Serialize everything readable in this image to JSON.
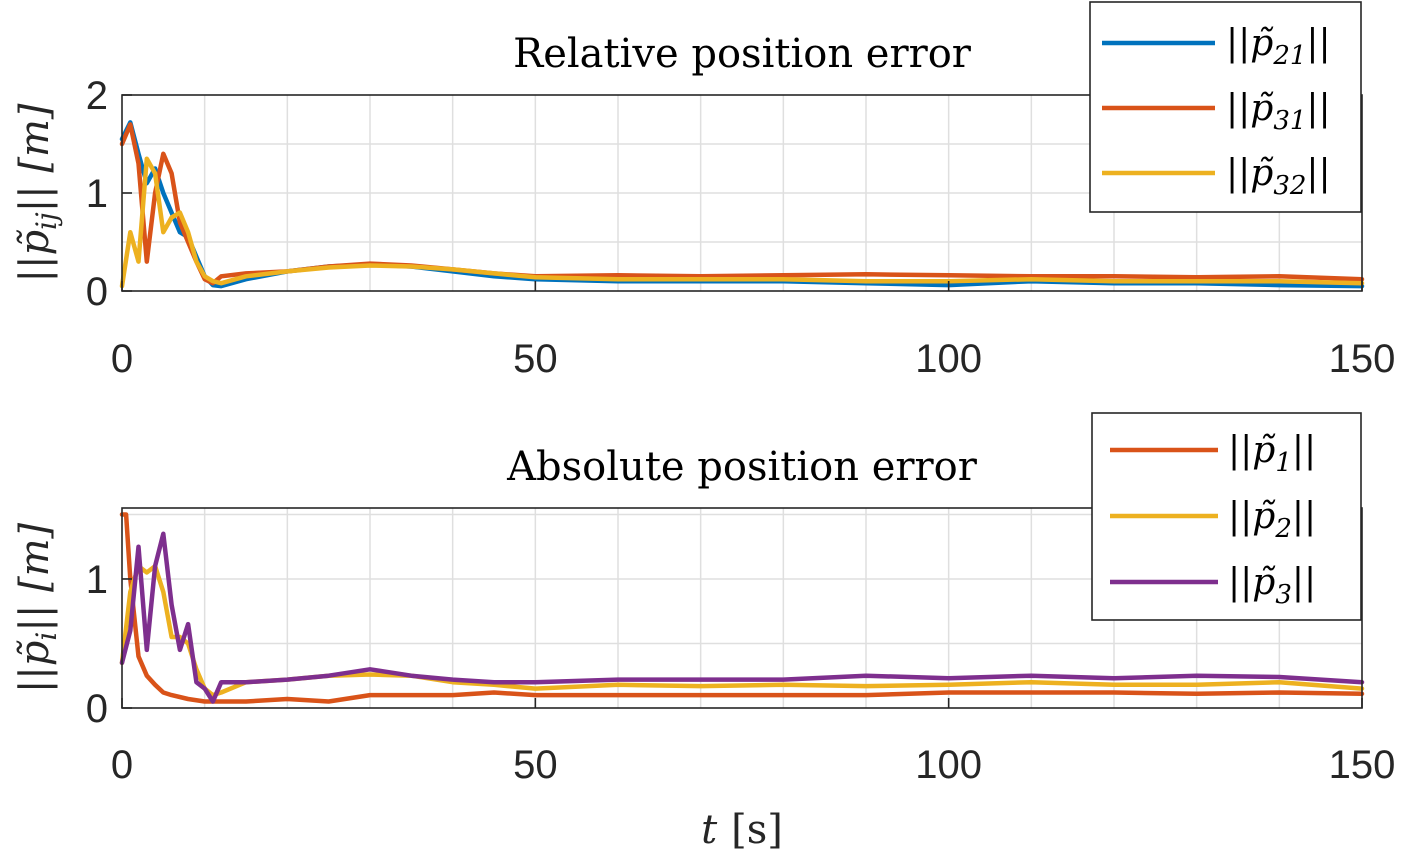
{
  "chart_data": [
    {
      "type": "line",
      "title": "Relative position error",
      "ylabel": "||p̃ij|| [m]",
      "xlabel": "",
      "xlim": [
        0,
        150
      ],
      "ylim": [
        0,
        2
      ],
      "xticks": [
        0,
        50,
        100,
        150
      ],
      "yticks": [
        0,
        1,
        2
      ],
      "grid": true,
      "legend_placement": "top-right",
      "series": [
        {
          "name": "||p̃21||",
          "color": "#0072BD",
          "x": [
            0,
            1,
            2,
            3,
            4,
            5,
            6,
            7,
            8,
            9,
            10,
            11,
            12,
            15,
            20,
            25,
            30,
            35,
            40,
            45,
            50,
            60,
            70,
            80,
            90,
            100,
            110,
            120,
            130,
            140,
            150
          ],
          "y": [
            1.55,
            1.72,
            1.4,
            1.1,
            1.25,
            1.0,
            0.8,
            0.6,
            0.55,
            0.35,
            0.15,
            0.06,
            0.05,
            0.12,
            0.2,
            0.25,
            0.27,
            0.25,
            0.2,
            0.15,
            0.12,
            0.1,
            0.1,
            0.1,
            0.08,
            0.06,
            0.1,
            0.08,
            0.08,
            0.06,
            0.05
          ]
        },
        {
          "name": "||p̃31||",
          "color": "#D95319",
          "x": [
            0,
            1,
            2,
            3,
            4,
            5,
            6,
            7,
            8,
            9,
            10,
            11,
            12,
            15,
            20,
            25,
            30,
            35,
            40,
            45,
            50,
            60,
            70,
            80,
            90,
            100,
            110,
            120,
            130,
            140,
            150
          ],
          "y": [
            1.5,
            1.7,
            1.3,
            0.3,
            1.0,
            1.4,
            1.2,
            0.7,
            0.5,
            0.3,
            0.12,
            0.08,
            0.15,
            0.18,
            0.2,
            0.25,
            0.28,
            0.26,
            0.22,
            0.18,
            0.15,
            0.16,
            0.15,
            0.16,
            0.17,
            0.16,
            0.15,
            0.15,
            0.14,
            0.15,
            0.12
          ]
        },
        {
          "name": "||p̃32||",
          "color": "#EDB120",
          "x": [
            0,
            1,
            2,
            3,
            4,
            5,
            6,
            7,
            8,
            9,
            10,
            11,
            12,
            15,
            20,
            25,
            30,
            35,
            40,
            45,
            50,
            60,
            70,
            80,
            90,
            100,
            110,
            120,
            130,
            140,
            150
          ],
          "y": [
            0.05,
            0.6,
            0.3,
            1.35,
            1.2,
            0.6,
            0.75,
            0.8,
            0.6,
            0.3,
            0.15,
            0.1,
            0.08,
            0.15,
            0.2,
            0.24,
            0.26,
            0.25,
            0.22,
            0.18,
            0.14,
            0.12,
            0.12,
            0.12,
            0.1,
            0.1,
            0.12,
            0.1,
            0.1,
            0.1,
            0.08
          ]
        }
      ]
    },
    {
      "type": "line",
      "title": "Absolute position error",
      "ylabel": "||p̃i|| [m]",
      "xlabel": "t [s]",
      "xlim": [
        0,
        150
      ],
      "ylim": [
        0,
        1.55
      ],
      "xticks": [
        0,
        50,
        100,
        150
      ],
      "yticks": [
        0,
        1
      ],
      "grid": true,
      "legend_placement": "top-right",
      "series": [
        {
          "name": "||p̃1||",
          "color": "#D95319",
          "x": [
            0,
            0.5,
            1,
            2,
            3,
            4,
            5,
            6,
            8,
            10,
            12,
            15,
            20,
            25,
            30,
            35,
            40,
            45,
            50,
            60,
            70,
            80,
            90,
            100,
            110,
            120,
            130,
            140,
            150
          ],
          "y": [
            1.5,
            1.5,
            1.0,
            0.4,
            0.25,
            0.18,
            0.12,
            0.1,
            0.07,
            0.05,
            0.05,
            0.05,
            0.07,
            0.05,
            0.1,
            0.1,
            0.1,
            0.12,
            0.1,
            0.1,
            0.1,
            0.1,
            0.1,
            0.12,
            0.12,
            0.12,
            0.11,
            0.12,
            0.11
          ]
        },
        {
          "name": "||p̃2||",
          "color": "#EDB120",
          "x": [
            0,
            1,
            2,
            3,
            4,
            5,
            6,
            7,
            8,
            9,
            10,
            11,
            12,
            15,
            20,
            25,
            30,
            35,
            40,
            45,
            50,
            60,
            70,
            80,
            90,
            100,
            110,
            120,
            130,
            140,
            150
          ],
          "y": [
            0.35,
            0.9,
            1.1,
            1.05,
            1.1,
            0.9,
            0.55,
            0.55,
            0.5,
            0.3,
            0.15,
            0.1,
            0.12,
            0.2,
            0.22,
            0.25,
            0.26,
            0.25,
            0.2,
            0.18,
            0.15,
            0.18,
            0.17,
            0.18,
            0.17,
            0.18,
            0.2,
            0.18,
            0.18,
            0.2,
            0.15
          ]
        },
        {
          "name": "||p̃3||",
          "color": "#7E2F8E",
          "x": [
            0,
            1,
            2,
            3,
            4,
            5,
            6,
            7,
            8,
            9,
            10,
            11,
            12,
            15,
            20,
            25,
            30,
            35,
            40,
            45,
            50,
            60,
            70,
            80,
            90,
            100,
            110,
            120,
            130,
            140,
            150
          ],
          "y": [
            0.35,
            0.6,
            1.25,
            0.45,
            1.1,
            1.35,
            0.8,
            0.45,
            0.65,
            0.2,
            0.15,
            0.05,
            0.2,
            0.2,
            0.22,
            0.25,
            0.3,
            0.25,
            0.22,
            0.2,
            0.2,
            0.22,
            0.22,
            0.22,
            0.25,
            0.23,
            0.25,
            0.23,
            0.25,
            0.24,
            0.2
          ]
        }
      ]
    }
  ],
  "charts": [
    {
      "title": "Relative position error",
      "ylabel_main": "||p̃",
      "ylabel_sub": "ij",
      "ylabel_tail": "|| [m]",
      "xlabel_main": "",
      "xlabel_unit": "",
      "xtick_labels": [
        "0",
        "50",
        "100",
        "150"
      ],
      "ytick_labels": [
        "0",
        "1",
        "2"
      ],
      "legend": [
        {
          "prefix": "||p̃",
          "sub": "21",
          "suffix": "||"
        },
        {
          "prefix": "||p̃",
          "sub": "31",
          "suffix": "||"
        },
        {
          "prefix": "||p̃",
          "sub": "32",
          "suffix": "||"
        }
      ]
    },
    {
      "title": "Absolute position error",
      "ylabel_main": "||p̃",
      "ylabel_sub": "i",
      "ylabel_tail": "|| [m]",
      "xlabel_main": "t",
      "xlabel_unit": "[s]",
      "xtick_labels": [
        "0",
        "50",
        "100",
        "150"
      ],
      "ytick_labels": [
        "0",
        "1"
      ],
      "legend": [
        {
          "prefix": "||p̃",
          "sub": "1",
          "suffix": "||"
        },
        {
          "prefix": "||p̃",
          "sub": "2",
          "suffix": "||"
        },
        {
          "prefix": "||p̃",
          "sub": "3",
          "suffix": "||"
        }
      ]
    }
  ]
}
